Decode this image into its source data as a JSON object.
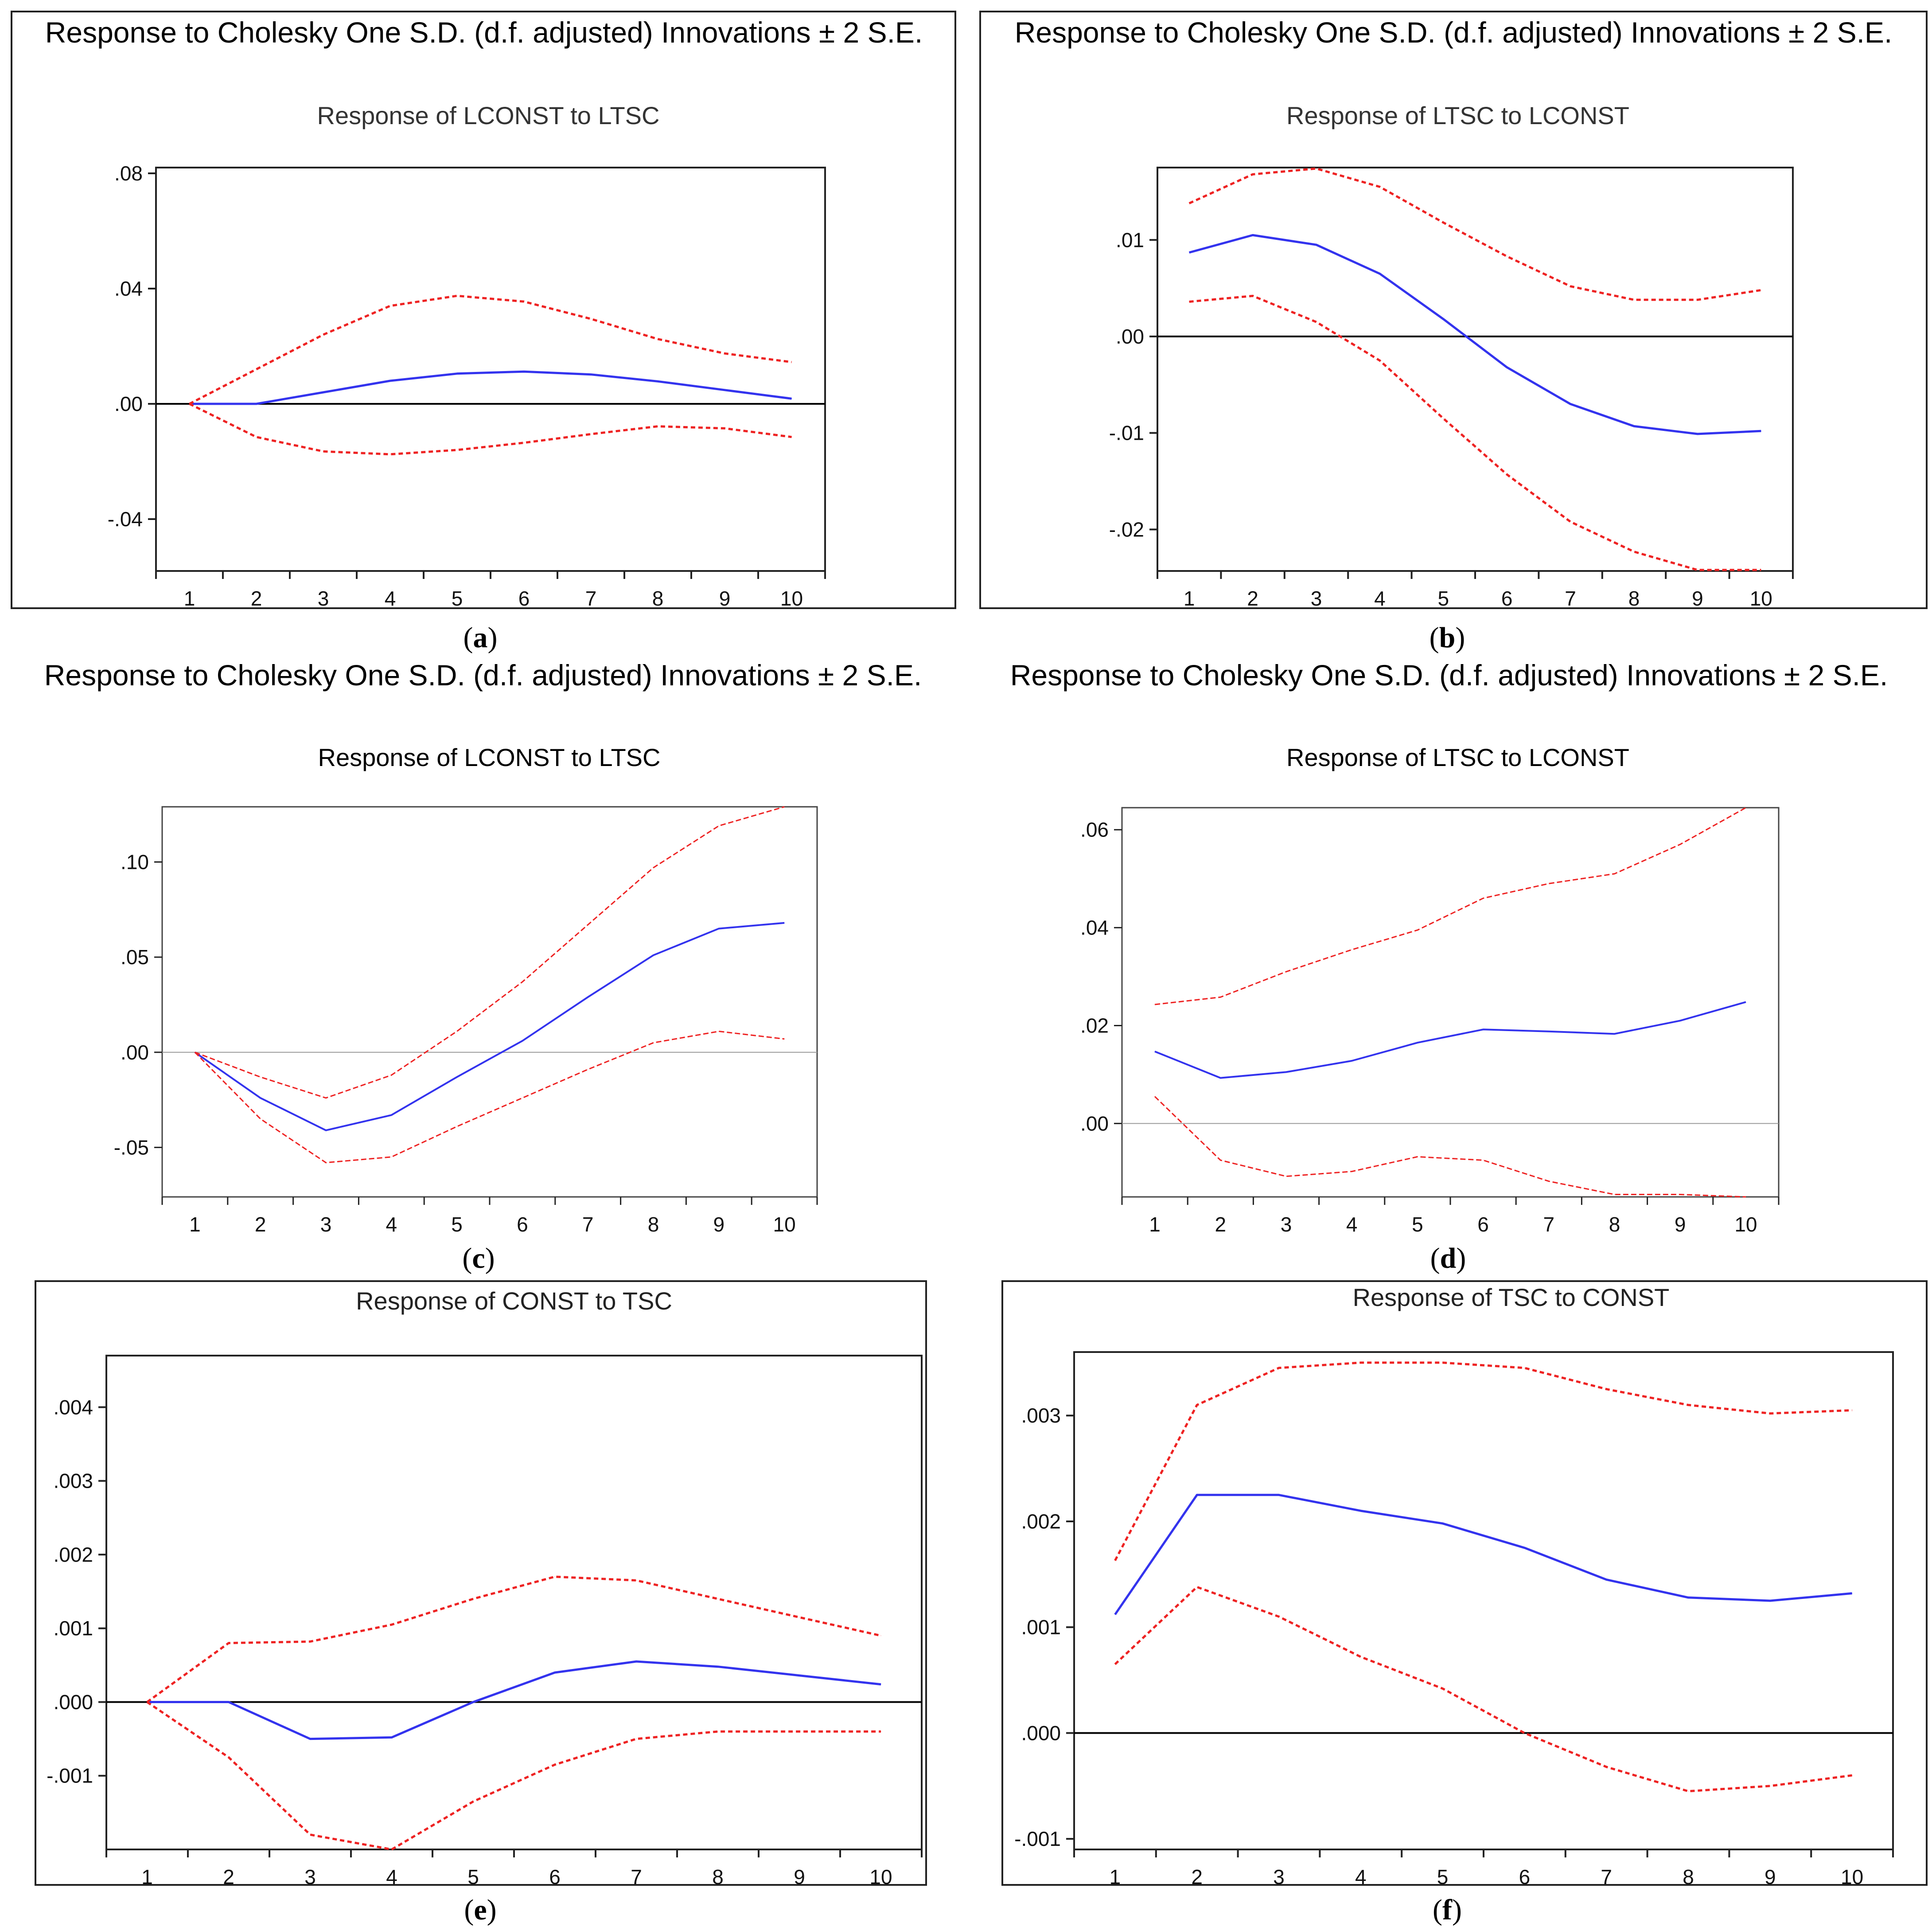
{
  "figure": {
    "header_text": "Response to Cholesky One S.D. (d.f. adjusted) Innovations ± 2 S.E.",
    "colors": {
      "response": "#3333ee",
      "bands": "#ee2222",
      "axis": "#000000",
      "zero_line_thin": "#999999"
    }
  },
  "chart_data": [
    {
      "id": "a",
      "type": "line",
      "caption_letter": "a",
      "header": "Response to Cholesky One S.D. (d.f. adjusted) Innovations ± 2 S.E.",
      "title": "Response of LCONST to LTSC",
      "x": [
        1,
        2,
        3,
        4,
        5,
        6,
        7,
        8,
        9,
        10
      ],
      "xlim": [
        0.5,
        10.5
      ],
      "ylim": [
        -0.058,
        0.082
      ],
      "yticks": [
        0.08,
        0.04,
        0.0,
        -0.04
      ],
      "yticklabels": [
        ".08",
        ".04",
        ".00",
        "-.04"
      ],
      "xlabel": "",
      "ylabel": "",
      "series": [
        {
          "name": "Response",
          "role": "response",
          "values": [
            0.0,
            0.0,
            0.004,
            0.008,
            0.0105,
            0.0112,
            0.0102,
            0.0078,
            0.0048,
            0.0018
          ]
        },
        {
          "name": "+2 S.E.",
          "role": "upper",
          "values": [
            0.0,
            0.012,
            0.024,
            0.034,
            0.0375,
            0.0355,
            0.0295,
            0.0225,
            0.0175,
            0.0145
          ]
        },
        {
          "name": "-2 S.E.",
          "role": "lower",
          "values": [
            0.0,
            -0.0115,
            -0.0165,
            -0.0175,
            -0.016,
            -0.0135,
            -0.0105,
            -0.0078,
            -0.0085,
            -0.0115
          ]
        }
      ]
    },
    {
      "id": "b",
      "type": "line",
      "caption_letter": "b",
      "header": "Response to Cholesky One S.D. (d.f. adjusted) Innovations ± 2 S.E.",
      "title": "Response of LTSC to LCONST",
      "x": [
        1,
        2,
        3,
        4,
        5,
        6,
        7,
        8,
        9,
        10
      ],
      "xlim": [
        0.5,
        10.5
      ],
      "ylim": [
        -0.0243,
        0.0175
      ],
      "yticks": [
        0.01,
        0.0,
        -0.01,
        -0.02
      ],
      "yticklabels": [
        ".01",
        ".00",
        "-.01",
        "-.02"
      ],
      "xlabel": "",
      "ylabel": "",
      "series": [
        {
          "name": "Response",
          "role": "response",
          "values": [
            0.0087,
            0.0105,
            0.0095,
            0.0065,
            0.0018,
            -0.0032,
            -0.007,
            -0.0093,
            -0.0101,
            -0.0098
          ]
        },
        {
          "name": "+2 S.E.",
          "role": "upper",
          "values": [
            0.0138,
            0.0168,
            0.0174,
            0.0155,
            0.0118,
            0.0083,
            0.0052,
            0.0038,
            0.0038,
            0.0048
          ]
        },
        {
          "name": "-2 S.E.",
          "role": "lower",
          "values": [
            0.0036,
            0.0042,
            0.0015,
            -0.0025,
            -0.0085,
            -0.0143,
            -0.0192,
            -0.0223,
            -0.0242,
            -0.0242
          ]
        }
      ]
    },
    {
      "id": "c",
      "type": "line",
      "caption_letter": "c",
      "header": "Response to Cholesky One S.D. (d.f. adjusted) Innovations ± 2 S.E.",
      "title": "Response of LCONST to LTSC",
      "x": [
        1,
        2,
        3,
        4,
        5,
        6,
        7,
        8,
        9,
        10
      ],
      "xlim": [
        0.5,
        10.5
      ],
      "ylim": [
        -0.076,
        0.129
      ],
      "yticks": [
        0.1,
        0.05,
        0.0,
        -0.05
      ],
      "yticklabels": [
        ".10",
        ".05",
        ".00",
        "-.05"
      ],
      "xlabel": "",
      "ylabel": "",
      "series": [
        {
          "name": "Response",
          "role": "response",
          "values": [
            0.0,
            -0.024,
            -0.041,
            -0.033,
            -0.013,
            0.006,
            0.029,
            0.051,
            0.065,
            0.068
          ]
        },
        {
          "name": "+2 S.E.",
          "role": "upper",
          "values": [
            0.0,
            -0.013,
            -0.024,
            -0.012,
            0.011,
            0.037,
            0.067,
            0.097,
            0.119,
            0.129
          ]
        },
        {
          "name": "-2 S.E.",
          "role": "lower",
          "values": [
            0.0,
            -0.035,
            -0.058,
            -0.055,
            -0.039,
            -0.024,
            -0.009,
            0.005,
            0.011,
            0.007
          ]
        }
      ]
    },
    {
      "id": "d",
      "type": "line",
      "caption_letter": "d",
      "header": "Response to Cholesky One S.D. (d.f. adjusted) Innovations ± 2 S.E.",
      "title": "Response of LTSC to LCONST",
      "x": [
        1,
        2,
        3,
        4,
        5,
        6,
        7,
        8,
        9,
        10
      ],
      "xlim": [
        0.5,
        10.5
      ],
      "ylim": [
        -0.015,
        0.0645
      ],
      "yticks": [
        0.06,
        0.04,
        0.02,
        0.0
      ],
      "yticklabels": [
        ".06",
        ".04",
        ".02",
        ".00"
      ],
      "xlabel": "",
      "ylabel": "",
      "series": [
        {
          "name": "Response",
          "role": "response",
          "values": [
            0.0147,
            0.0093,
            0.0105,
            0.0128,
            0.0165,
            0.0192,
            0.0188,
            0.0183,
            0.021,
            0.0248
          ]
        },
        {
          "name": "+2 S.E.",
          "role": "upper",
          "values": [
            0.0243,
            0.0258,
            0.031,
            0.0355,
            0.0395,
            0.046,
            0.049,
            0.051,
            0.057,
            0.0645
          ]
        },
        {
          "name": "-2 S.E.",
          "role": "lower",
          "values": [
            0.0055,
            -0.0075,
            -0.0108,
            -0.0098,
            -0.0068,
            -0.0075,
            -0.0118,
            -0.0145,
            -0.0145,
            -0.015
          ]
        }
      ]
    },
    {
      "id": "e",
      "type": "line",
      "caption_letter": "e",
      "header": "",
      "title": "Response of CONST to TSC",
      "x": [
        1,
        2,
        3,
        4,
        5,
        6,
        7,
        8,
        9,
        10
      ],
      "xlim": [
        0.5,
        10.5
      ],
      "ylim": [
        -0.002,
        0.0047
      ],
      "yticks": [
        0.004,
        0.003,
        0.002,
        0.001,
        0.0,
        -0.001
      ],
      "yticklabels": [
        ".004",
        ".003",
        ".002",
        ".001",
        ".000",
        "-.001"
      ],
      "xlabel": "",
      "ylabel": "",
      "series": [
        {
          "name": "Response",
          "role": "response",
          "values": [
            0.0,
            0.0,
            -0.0005,
            -0.00048,
            0.0,
            0.0004,
            0.00055,
            0.00048,
            0.00036,
            0.00024
          ]
        },
        {
          "name": "+2 S.E.",
          "role": "upper",
          "values": [
            0.0,
            0.0008,
            0.00082,
            0.00105,
            0.0014,
            0.0017,
            0.00165,
            0.0014,
            0.00115,
            0.0009
          ]
        },
        {
          "name": "-2 S.E.",
          "role": "lower",
          "values": [
            0.0,
            -0.00075,
            -0.0018,
            -0.002,
            -0.00135,
            -0.00085,
            -0.0005,
            -0.0004,
            -0.0004,
            -0.0004
          ]
        }
      ]
    },
    {
      "id": "f",
      "type": "line",
      "caption_letter": "f",
      "header": "",
      "title": "Response of TSC to CONST",
      "x": [
        1,
        2,
        3,
        4,
        5,
        6,
        7,
        8,
        9,
        10
      ],
      "xlim": [
        0.5,
        10.5
      ],
      "ylim": [
        -0.0011,
        0.0036
      ],
      "yticks": [
        0.003,
        0.002,
        0.001,
        0.0,
        -0.001
      ],
      "yticklabels": [
        ".003",
        ".002",
        ".001",
        ".000",
        "-.001"
      ],
      "xlabel": "",
      "ylabel": "",
      "series": [
        {
          "name": "Response",
          "role": "response",
          "values": [
            0.00112,
            0.00225,
            0.00225,
            0.0021,
            0.00198,
            0.00175,
            0.00145,
            0.00128,
            0.00125,
            0.00132
          ]
        },
        {
          "name": "+2 S.E.",
          "role": "upper",
          "values": [
            0.00163,
            0.0031,
            0.00345,
            0.0035,
            0.0035,
            0.00345,
            0.00325,
            0.0031,
            0.00302,
            0.00305
          ]
        },
        {
          "name": "-2 S.E.",
          "role": "lower",
          "values": [
            0.00065,
            0.00138,
            0.0011,
            0.00072,
            0.00042,
            0.0,
            -0.00032,
            -0.00055,
            -0.0005,
            -0.0004
          ]
        }
      ]
    }
  ]
}
